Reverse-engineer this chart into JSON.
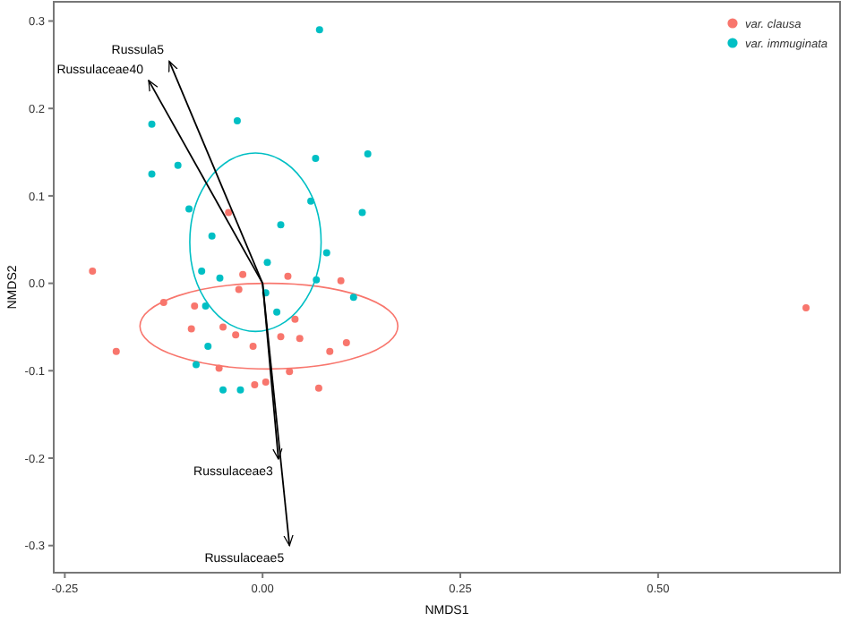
{
  "chart_data": {
    "type": "scatter",
    "xlabel": "NMDS1",
    "ylabel": "NMDS2",
    "xlim": [
      -0.264,
      0.73
    ],
    "ylim": [
      -0.331,
      0.322
    ],
    "xticks": [
      {
        "value": -0.25,
        "label": "-0.25"
      },
      {
        "value": 0,
        "label": "0.00"
      },
      {
        "value": 0.25,
        "label": "0.25"
      },
      {
        "value": 0.5,
        "label": "0.50"
      }
    ],
    "yticks": [
      {
        "value": -0.3,
        "label": "-0.3"
      },
      {
        "value": -0.2,
        "label": "-0.2"
      },
      {
        "value": -0.1,
        "label": "-0.1"
      },
      {
        "value": 0,
        "label": "0.0"
      },
      {
        "value": 0.1,
        "label": "0.1"
      },
      {
        "value": 0.2,
        "label": "0.2"
      },
      {
        "value": 0.3,
        "label": "0.3"
      }
    ],
    "grid": false,
    "legend": "top right",
    "series": [
      {
        "name": "var. clausa",
        "color": "#f8766d",
        "type": "scatter",
        "marker": "circle",
        "x": [
          -0.215,
          -0.043,
          -0.025,
          0.032,
          0.099,
          -0.03,
          -0.125,
          -0.086,
          0.041,
          -0.185,
          -0.09,
          -0.05,
          -0.034,
          -0.012,
          0.023,
          0.047,
          0.085,
          0.106,
          -0.055,
          0.034,
          -0.01,
          0.004,
          0.071,
          0.687
        ],
        "values": [
          0.014,
          0.081,
          0.01,
          0.008,
          0.003,
          -0.007,
          -0.022,
          -0.026,
          -0.041,
          -0.078,
          -0.052,
          -0.05,
          -0.059,
          -0.072,
          -0.061,
          -0.063,
          -0.078,
          -0.068,
          -0.097,
          -0.101,
          -0.116,
          -0.113,
          -0.12,
          -0.028
        ]
      },
      {
        "name": "var. immuginata",
        "color": "#00bfc4",
        "type": "scatter",
        "marker": "circle",
        "x": [
          0.072,
          -0.14,
          -0.032,
          -0.14,
          -0.107,
          0.067,
          0.133,
          0.061,
          0.126,
          -0.093,
          0.023,
          -0.064,
          0.081,
          0.006,
          -0.077,
          -0.054,
          0.068,
          0.115,
          0.004,
          -0.072,
          0.018,
          -0.069,
          -0.084,
          -0.05,
          -0.028
        ],
        "values": [
          0.29,
          0.182,
          0.186,
          0.125,
          0.135,
          0.143,
          0.148,
          0.094,
          0.081,
          0.085,
          0.067,
          0.054,
          0.035,
          0.024,
          0.014,
          0.006,
          0.004,
          -0.016,
          -0.011,
          -0.026,
          -0.033,
          -0.072,
          -0.093,
          -0.122,
          -0.122
        ]
      },
      {
        "name": "Russula5",
        "color": "#000000",
        "type": "line",
        "line_style": "solid",
        "x": [
          0,
          -0.118
        ],
        "values": [
          0,
          0.254
        ]
      },
      {
        "name": "Russulaceae40",
        "color": "#000000",
        "type": "line",
        "line_style": "solid",
        "x": [
          0,
          -0.144
        ],
        "values": [
          0,
          0.232
        ]
      },
      {
        "name": "Russulaceae3",
        "color": "#000000",
        "type": "line",
        "line_style": "solid",
        "x": [
          0,
          0.02
        ],
        "values": [
          0,
          -0.201
        ]
      },
      {
        "name": "Russulaceae5",
        "color": "#000000",
        "type": "line",
        "line_style": "solid",
        "x": [
          0,
          0.034
        ],
        "values": [
          0,
          -0.3
        ]
      }
    ]
  }
}
